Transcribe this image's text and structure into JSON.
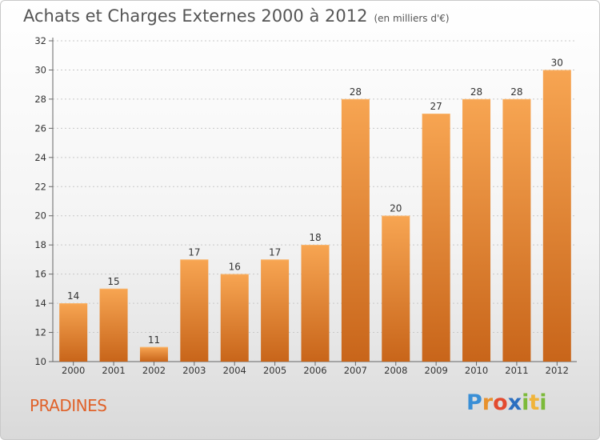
{
  "header": {
    "title": "Achats et Charges Externes 2000 à 2012",
    "subtitle": "(en milliers d'€)"
  },
  "footer": {
    "place": "PRADINES",
    "logo_letters": [
      {
        "ch": "P",
        "color": "#3a8fd6"
      },
      {
        "ch": "r",
        "color": "#e8912c"
      },
      {
        "ch": "o",
        "color": "#e34b2f"
      },
      {
        "ch": "x",
        "color": "#2b6fc0"
      },
      {
        "ch": "i",
        "color": "#7cba3a"
      },
      {
        "ch": "t",
        "color": "#f0b43a"
      },
      {
        "ch": "i",
        "color": "#7cba3a"
      }
    ]
  },
  "chart_data": {
    "type": "bar",
    "title": "Achats et Charges Externes 2000 à 2012",
    "subtitle": "(en milliers d'€)",
    "xlabel": "",
    "ylabel": "",
    "categories": [
      "2000",
      "2001",
      "2002",
      "2003",
      "2004",
      "2005",
      "2006",
      "2007",
      "2008",
      "2009",
      "2010",
      "2011",
      "2012"
    ],
    "values": [
      14,
      15,
      11,
      17,
      16,
      17,
      18,
      28,
      20,
      27,
      28,
      28,
      30
    ],
    "ylim": [
      10,
      32
    ],
    "yticks": [
      10,
      12,
      14,
      16,
      18,
      20,
      22,
      24,
      26,
      28,
      30,
      32
    ],
    "grid": true,
    "bar_color_top": "#f7a552",
    "bar_color_bottom": "#c8651a"
  }
}
